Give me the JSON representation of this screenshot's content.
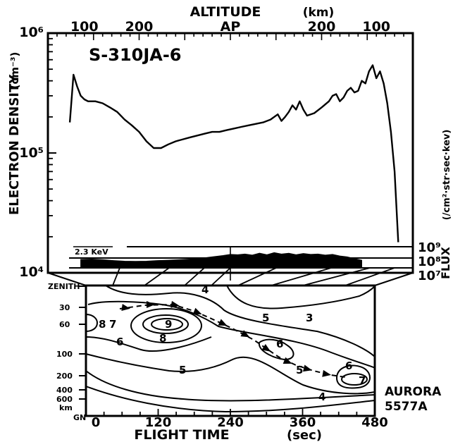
{
  "colors": {
    "ink": "#000000",
    "paper": "#ffffff"
  },
  "chart_data": [
    {
      "type": "line",
      "title": "S-310JA-6",
      "ylabel": "ELECTRON DENSITY",
      "ylabel_unit": "(cm⁻³)",
      "xlabel_top": "ALTITUDE",
      "xlabel_top_unit": "(km)",
      "scale": "log",
      "ylim": [
        10000,
        1000000
      ],
      "y_tick_labels": [
        "10⁶",
        "10⁵",
        "10⁴"
      ],
      "x_tick_labels": [
        "100",
        "200",
        "AP",
        "200",
        "100"
      ],
      "x_tick_values": [
        0.1,
        0.25,
        0.5,
        0.75,
        0.9
      ],
      "series": [
        {
          "x": [
            0.06,
            0.07,
            0.08,
            0.09,
            0.1,
            0.11,
            0.13,
            0.15,
            0.17,
            0.19,
            0.21,
            0.23,
            0.25,
            0.27,
            0.29,
            0.31,
            0.33,
            0.35,
            0.37,
            0.39,
            0.41,
            0.43,
            0.45,
            0.47,
            0.49,
            0.51,
            0.53,
            0.55,
            0.57,
            0.59,
            0.61,
            0.63,
            0.64,
            0.65,
            0.66,
            0.67,
            0.68,
            0.69,
            0.7,
            0.71,
            0.72,
            0.73,
            0.75,
            0.77,
            0.78,
            0.79,
            0.8,
            0.81,
            0.82,
            0.83,
            0.84,
            0.85,
            0.86,
            0.87,
            0.88,
            0.89,
            0.9,
            0.91,
            0.92,
            0.93,
            0.94,
            0.95,
            0.96
          ],
          "values": [
            180000,
            450000,
            360000,
            300000,
            280000,
            270000,
            270000,
            260000,
            240000,
            220000,
            190000,
            170000,
            150000,
            125000,
            110000,
            110000,
            118000,
            125000,
            130000,
            135000,
            140000,
            145000,
            150000,
            150000,
            155000,
            160000,
            165000,
            170000,
            175000,
            180000,
            190000,
            210000,
            185000,
            200000,
            220000,
            250000,
            230000,
            270000,
            230000,
            205000,
            210000,
            215000,
            240000,
            270000,
            300000,
            310000,
            270000,
            290000,
            330000,
            350000,
            320000,
            330000,
            400000,
            380000,
            480000,
            540000,
            420000,
            480000,
            380000,
            260000,
            150000,
            70000,
            18000
          ]
        }
      ]
    },
    {
      "type": "area",
      "label": "2.3 KeV",
      "ylabel": "FLUX",
      "ylabel_unit": "(/cm²·str·sec·kev)",
      "scale": "log",
      "y_tick_labels": [
        "10⁹",
        "10⁸",
        "10⁷"
      ],
      "ylim": [
        10000000,
        1000000000
      ],
      "x": [
        0.09,
        0.12,
        0.15,
        0.18,
        0.21,
        0.24,
        0.27,
        0.3,
        0.33,
        0.36,
        0.39,
        0.42,
        0.45,
        0.48,
        0.5,
        0.52,
        0.54,
        0.56,
        0.58,
        0.6,
        0.62,
        0.64,
        0.66,
        0.68,
        0.7,
        0.72,
        0.74,
        0.76,
        0.78,
        0.8,
        0.82,
        0.84,
        0.86
      ],
      "values": [
        40000000,
        42000000,
        38000000,
        33000000,
        30000000,
        29000000,
        30000000,
        33000000,
        35000000,
        38000000,
        42000000,
        48000000,
        60000000,
        75000000,
        90000000,
        85000000,
        95000000,
        80000000,
        110000000,
        85000000,
        120000000,
        95000000,
        110000000,
        85000000,
        105000000,
        90000000,
        95000000,
        80000000,
        90000000,
        70000000,
        60000000,
        45000000,
        35000000
      ]
    },
    {
      "type": "heatmap",
      "subtype": "contour",
      "xlabel": "FLIGHT TIME",
      "xlabel_unit": "(sec)",
      "xlim": [
        0,
        480
      ],
      "x_ticks": [
        0,
        120,
        240,
        360,
        480
      ],
      "y_tick_labels": [
        "ZENITH",
        "30",
        "60",
        "100",
        "200",
        "400",
        "600",
        "km",
        "GN"
      ],
      "contour_labels": [
        "3",
        "4",
        "4",
        "5",
        "5",
        "5",
        "6",
        "6",
        "6",
        "7",
        "7",
        "8",
        "8",
        "9"
      ],
      "annotations": [
        "AURORA",
        "5577A"
      ]
    }
  ]
}
